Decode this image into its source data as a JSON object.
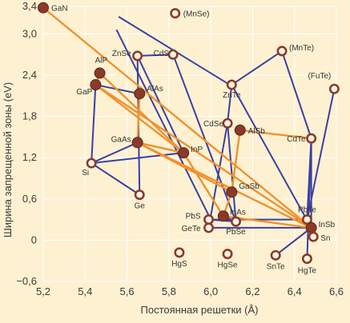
{
  "chart_data": {
    "type": "scatter",
    "xlabel": "Постоянная решетки (Å)",
    "ylabel": "Ширина запрещенной зоны (eV)",
    "xlim": [
      5.2,
      6.6
    ],
    "ylim": [
      -0.6,
      3.4
    ],
    "xticks": [
      "5,2",
      "5,4",
      "5,6",
      "5,8",
      "6,0",
      "6,2",
      "6,4",
      "6,6"
    ],
    "yticks": [
      "3,4",
      "3,0",
      "2,4",
      "1,8",
      "1,2",
      "0,6",
      "0",
      "−0,6"
    ],
    "grid": true,
    "colors": {
      "background": "#fdf1d2",
      "filled": "#8b3a2a",
      "open_edge": "#8b3a2a",
      "orange_line": "#f0922e",
      "blue_line": "#3b3fa0",
      "grid": "#ffffff"
    },
    "points": [
      {
        "label": "GaN",
        "x": 5.2,
        "y": 3.38,
        "filled": true
      },
      {
        "label": "(MnSe)",
        "x": 5.83,
        "y": 3.3,
        "filled": false
      },
      {
        "label": "ZnSe",
        "x": 5.65,
        "y": 2.68,
        "filled": false
      },
      {
        "label": "CdS",
        "x": 5.82,
        "y": 2.7,
        "filled": false
      },
      {
        "label": "(MnTe)",
        "x": 6.34,
        "y": 2.75,
        "filled": false
      },
      {
        "label": "AlP",
        "x": 5.47,
        "y": 2.43,
        "filled": true
      },
      {
        "label": "ZnTe",
        "x": 6.1,
        "y": 2.26,
        "filled": false
      },
      {
        "label": "(FuTe)",
        "x": 6.59,
        "y": 2.2,
        "filled": false
      },
      {
        "label": "GaP",
        "x": 5.45,
        "y": 2.26,
        "filled": true
      },
      {
        "label": "AlAs",
        "x": 5.66,
        "y": 2.13,
        "filled": true
      },
      {
        "label": "CdSe",
        "x": 6.08,
        "y": 1.7,
        "filled": false
      },
      {
        "label": "AlSb",
        "x": 6.14,
        "y": 1.6,
        "filled": true
      },
      {
        "label": "CdTe",
        "x": 6.48,
        "y": 1.48,
        "filled": false
      },
      {
        "label": "GaAs",
        "x": 5.65,
        "y": 1.42,
        "filled": true
      },
      {
        "label": "InP",
        "x": 5.87,
        "y": 1.27,
        "filled": true
      },
      {
        "label": "Si",
        "x": 5.43,
        "y": 1.12,
        "filled": false
      },
      {
        "label": "GaSb",
        "x": 6.1,
        "y": 0.7,
        "filled": true
      },
      {
        "label": "Ge",
        "x": 5.66,
        "y": 0.66,
        "filled": false
      },
      {
        "label": "InAs",
        "x": 6.06,
        "y": 0.35,
        "filled": true
      },
      {
        "label": "PbS",
        "x": 5.99,
        "y": 0.3,
        "filled": false
      },
      {
        "label": "PbTe",
        "x": 6.46,
        "y": 0.3,
        "filled": false
      },
      {
        "label": "InSb",
        "x": 6.48,
        "y": 0.18,
        "filled": true
      },
      {
        "label": "GeTe",
        "x": 5.99,
        "y": 0.18,
        "filled": false
      },
      {
        "label": "PbSe",
        "x": 6.12,
        "y": 0.27,
        "filled": false
      },
      {
        "label": "Sn",
        "x": 6.49,
        "y": 0.05,
        "filled": false
      },
      {
        "label": "HgS",
        "x": 5.85,
        "y": -0.18,
        "filled": false
      },
      {
        "label": "HgSe",
        "x": 6.08,
        "y": -0.2,
        "filled": false
      },
      {
        "label": "SnTe",
        "x": 6.31,
        "y": -0.22,
        "filled": false
      },
      {
        "label": "HgTe",
        "x": 6.46,
        "y": -0.27,
        "filled": false
      }
    ],
    "orange_links": [
      [
        "GaN",
        "InSb"
      ],
      [
        "AlP",
        "InP"
      ],
      [
        "GaP",
        "InSb"
      ],
      [
        "GaAs",
        "InSb"
      ],
      [
        "AlP",
        "GaP"
      ],
      [
        "GaP",
        "InP"
      ],
      [
        "GaAs",
        "InP"
      ],
      [
        "GaAs",
        "AlAs"
      ],
      [
        "GaAs",
        "GaSb"
      ],
      [
        "InP",
        "InAs"
      ],
      [
        "InAs",
        "GaSb"
      ],
      [
        "GaSb",
        "AlSb"
      ],
      [
        "InAs",
        "InSb"
      ],
      [
        "AlSb",
        "CdTe"
      ]
    ],
    "blue_links": [
      [
        "ZnSe",
        "CdS"
      ],
      [
        "ZnSe",
        "Ge"
      ],
      [
        "ZnSe",
        "InP"
      ],
      [
        "CdS",
        "PbSe"
      ],
      [
        "ZnTe",
        "CdSe"
      ],
      [
        "ZnTe",
        "(MnTe)"
      ],
      [
        "ZnTe",
        "InSb"
      ],
      [
        "(MnTe)",
        "CdTe"
      ],
      [
        "(FuTe)",
        "PbTe"
      ],
      [
        "CdTe",
        "PbTe"
      ],
      [
        "CdTe",
        "InSb"
      ],
      [
        "CdTe",
        "HgTe"
      ],
      [
        "Si",
        "GaAs"
      ],
      [
        "Si",
        "InP"
      ],
      [
        "Si",
        "GaP"
      ],
      [
        "GaP",
        "AlAs"
      ],
      [
        "Si",
        "Ge"
      ],
      [
        "CdSe",
        "PbSe"
      ],
      [
        "CdSe",
        "GeTe"
      ],
      [
        "PbS",
        "PbSe"
      ],
      [
        "PbS",
        "PbTe"
      ],
      [
        "GeTe",
        "InSb"
      ],
      [
        "InSb",
        "SnTe"
      ],
      [
        "PbTe",
        "Sn"
      ],
      [
        "InAs",
        "PbSe"
      ]
    ],
    "diagonal_lines": [
      {
        "from": [
          5.55,
          3.06
        ],
        "to": [
          6.0,
          0.3
        ]
      },
      {
        "from": [
          5.56,
          3.25
        ],
        "to": [
          6.08,
          2.28
        ]
      }
    ]
  }
}
